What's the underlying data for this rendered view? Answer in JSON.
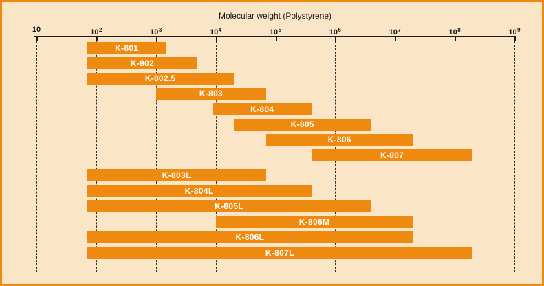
{
  "colors": {
    "bar": "#ee8a10",
    "background": "#fae6c6",
    "frame_border": "#ee8a10",
    "axis_ink": "#1a1a1a",
    "gridline": "#2b2b2b",
    "bar_label": "#ffffff"
  },
  "chart_data": {
    "type": "bar",
    "subtype": "horizontal-range-bars-log-scale",
    "title": "Molecular weight (Polystyrene)",
    "xlabel": "Molecular weight (Polystyrene)",
    "ylabel": "",
    "x_scale": "log10",
    "xlim": [
      10,
      1000000000
    ],
    "grid": "vertical dashed gridlines at each decade",
    "legend": "none (labels inside bars)",
    "x_ticks": [
      {
        "exp": 1,
        "base": "10",
        "sup": ""
      },
      {
        "exp": 2,
        "base": "10",
        "sup": "2"
      },
      {
        "exp": 3,
        "base": "10",
        "sup": "3"
      },
      {
        "exp": 4,
        "base": "10",
        "sup": "4"
      },
      {
        "exp": 5,
        "base": "10",
        "sup": "5"
      },
      {
        "exp": 6,
        "base": "10",
        "sup": "6"
      },
      {
        "exp": 7,
        "base": "10",
        "sup": "7"
      },
      {
        "exp": 8,
        "base": "10",
        "sup": "8"
      },
      {
        "exp": 9,
        "base": "10",
        "sup": "9"
      }
    ],
    "series": [
      {
        "label": "K-801",
        "group": 1,
        "min": 70,
        "max": 1500
      },
      {
        "label": "K-802",
        "group": 1,
        "min": 70,
        "max": 5000
      },
      {
        "label": "K-802.5",
        "group": 1,
        "min": 70,
        "max": 20000
      },
      {
        "label": "K-803",
        "group": 1,
        "min": 1000,
        "max": 70000
      },
      {
        "label": "K-804",
        "group": 1,
        "min": 9000,
        "max": 400000
      },
      {
        "label": "K-805",
        "group": 1,
        "min": 20000,
        "max": 4000000
      },
      {
        "label": "K-806",
        "group": 1,
        "min": 70000,
        "max": 20000000
      },
      {
        "label": "K-807",
        "group": 1,
        "min": 400000,
        "max": 200000000
      },
      {
        "label": "K-803L",
        "group": 2,
        "min": 70,
        "max": 70000
      },
      {
        "label": "K-804L",
        "group": 2,
        "min": 70,
        "max": 400000
      },
      {
        "label": "K-805L",
        "group": 2,
        "min": 70,
        "max": 4000000
      },
      {
        "label": "K-806M",
        "group": 2,
        "min": 10000,
        "max": 20000000
      },
      {
        "label": "K-806L",
        "group": 2,
        "min": 70,
        "max": 20000000
      },
      {
        "label": "K-807L",
        "group": 2,
        "min": 70,
        "max": 200000000
      }
    ]
  }
}
